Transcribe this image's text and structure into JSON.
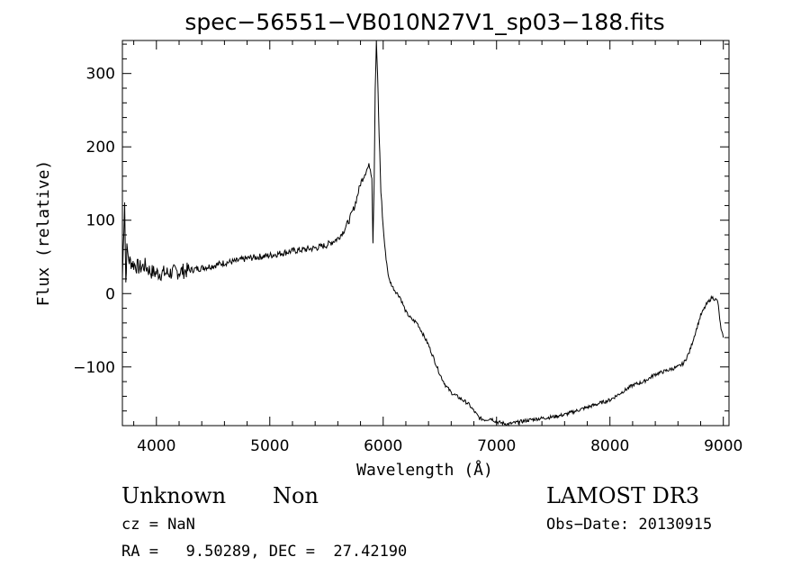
{
  "chart_data": {
    "type": "line",
    "title": "spec−56551−VB010N27V1_sp03−188.fits",
    "xlabel": "Wavelength (Å)",
    "ylabel": "Flux (relative)",
    "xlim": [
      3700,
      9050
    ],
    "ylim": [
      -180,
      345
    ],
    "x_ticks": [
      4000,
      5000,
      6000,
      7000,
      8000,
      9000
    ],
    "x_tick_labels": [
      "4000",
      "5000",
      "6000",
      "7000",
      "8000",
      "9000"
    ],
    "y_ticks": [
      -100,
      0,
      100,
      200,
      300
    ],
    "y_tick_labels": [
      "−100",
      "0",
      "100",
      "200",
      "300"
    ],
    "grid": false,
    "series": [
      {
        "name": "flux",
        "x": [
          3700,
          3720,
          3730,
          3740,
          3760,
          3800,
          3850,
          3900,
          3950,
          4000,
          4100,
          4200,
          4300,
          4400,
          4500,
          4600,
          4700,
          4800,
          4900,
          5000,
          5100,
          5200,
          5300,
          5400,
          5500,
          5600,
          5650,
          5700,
          5750,
          5800,
          5850,
          5880,
          5900,
          5910,
          5920,
          5930,
          5940,
          5950,
          5960,
          5970,
          5980,
          6000,
          6020,
          6050,
          6080,
          6100,
          6150,
          6200,
          6250,
          6300,
          6350,
          6400,
          6450,
          6500,
          6550,
          6600,
          6650,
          6700,
          6750,
          6800,
          6850,
          6900,
          6950,
          7000,
          7100,
          7200,
          7300,
          7400,
          7500,
          7600,
          7700,
          7800,
          7900,
          8000,
          8100,
          8200,
          8300,
          8400,
          8500,
          8600,
          8650,
          8700,
          8750,
          8800,
          8850,
          8900,
          8950,
          8980,
          9000
        ],
        "values": [
          20,
          130,
          15,
          60,
          45,
          40,
          35,
          38,
          30,
          28,
          28,
          30,
          32,
          35,
          38,
          42,
          44,
          48,
          50,
          52,
          55,
          58,
          60,
          62,
          66,
          75,
          85,
          100,
          120,
          150,
          168,
          175,
          160,
          70,
          150,
          280,
          345,
          300,
          240,
          190,
          140,
          90,
          55,
          20,
          10,
          5,
          -5,
          -25,
          -35,
          -40,
          -55,
          -70,
          -90,
          -110,
          -125,
          -135,
          -140,
          -145,
          -150,
          -160,
          -170,
          -172,
          -170,
          -175,
          -178,
          -175,
          -172,
          -170,
          -168,
          -165,
          -160,
          -155,
          -150,
          -145,
          -135,
          -125,
          -120,
          -110,
          -105,
          -100,
          -95,
          -80,
          -55,
          -30,
          -15,
          -5,
          -10,
          -50,
          -60
        ]
      }
    ]
  },
  "info": {
    "object_class": "Unknown",
    "subclass": "Non",
    "redshift": "cz = NaN",
    "coords": "RA =   9.50289, DEC =  27.42190",
    "survey": "LAMOST DR3",
    "obs_date": "Obs−Date: 20130915"
  }
}
